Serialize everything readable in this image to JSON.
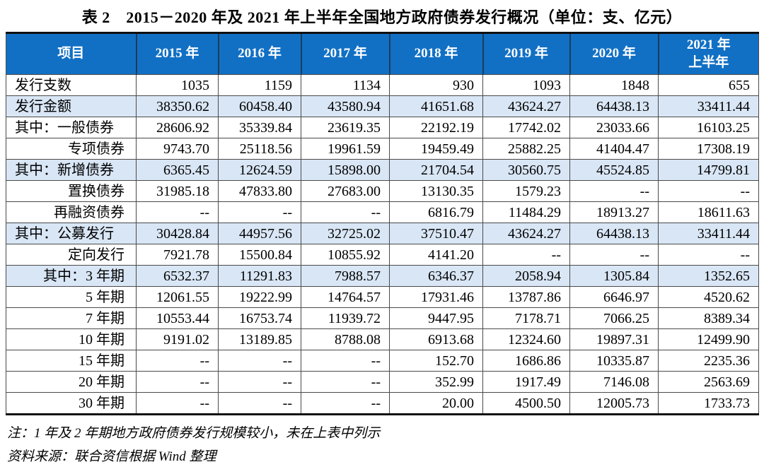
{
  "title": "表 2　2015－2020 年及 2021 年上半年全国地方政府债券发行概况（单位：支、亿元）",
  "table": {
    "columns": [
      "项目",
      "2015 年",
      "2016 年",
      "2017 年",
      "2018 年",
      "2019 年",
      "2020 年",
      "2021 年\n上半年"
    ],
    "rows": [
      {
        "label": "发行支数",
        "align": "left",
        "highlight": false,
        "values": [
          "1035",
          "1159",
          "1134",
          "930",
          "1093",
          "1848",
          "655"
        ]
      },
      {
        "label": "发行金额",
        "align": "left",
        "highlight": true,
        "values": [
          "38350.62",
          "60458.40",
          "43580.94",
          "41651.68",
          "43624.27",
          "64438.13",
          "33411.44"
        ]
      },
      {
        "label": "其中：一般债券",
        "align": "left",
        "highlight": false,
        "values": [
          "28606.92",
          "35339.84",
          "23619.35",
          "22192.19",
          "17742.02",
          "23033.66",
          "16103.25"
        ]
      },
      {
        "label": "专项债券",
        "align": "right",
        "highlight": false,
        "values": [
          "9743.70",
          "25118.56",
          "19961.59",
          "19459.49",
          "25882.25",
          "41404.47",
          "17308.19"
        ]
      },
      {
        "label": "其中：新增债券",
        "align": "left",
        "highlight": true,
        "values": [
          "6365.45",
          "12624.59",
          "15898.00",
          "21704.54",
          "30560.75",
          "45524.85",
          "14799.81"
        ]
      },
      {
        "label": "置换债券",
        "align": "right",
        "highlight": false,
        "values": [
          "31985.18",
          "47833.80",
          "27683.00",
          "13130.35",
          "1579.23",
          "--",
          "--"
        ]
      },
      {
        "label": "再融资债券",
        "align": "right",
        "highlight": false,
        "values": [
          "--",
          "--",
          "--",
          "6816.79",
          "11484.29",
          "18913.27",
          "18611.63"
        ]
      },
      {
        "label": "其中：公募发行",
        "align": "left",
        "highlight": true,
        "values": [
          "30428.84",
          "44957.56",
          "32725.02",
          "37510.47",
          "43624.27",
          "64438.13",
          "33411.44"
        ]
      },
      {
        "label": "定向发行",
        "align": "right",
        "highlight": false,
        "values": [
          "7921.78",
          "15500.84",
          "10855.92",
          "4141.20",
          "--",
          "--",
          "--"
        ]
      },
      {
        "label": "其中：3 年期",
        "align": "right",
        "highlight": true,
        "values": [
          "6532.37",
          "11291.83",
          "7988.57",
          "6346.37",
          "2058.94",
          "1305.84",
          "1352.65"
        ]
      },
      {
        "label": "5 年期",
        "align": "right",
        "highlight": false,
        "values": [
          "12061.55",
          "19222.99",
          "14764.57",
          "17931.46",
          "13787.86",
          "6646.97",
          "4520.62"
        ]
      },
      {
        "label": "7 年期",
        "align": "right",
        "highlight": false,
        "values": [
          "10553.44",
          "16753.74",
          "11939.72",
          "9447.95",
          "7178.71",
          "7066.25",
          "8389.34"
        ]
      },
      {
        "label": "10 年期",
        "align": "right",
        "highlight": false,
        "values": [
          "9191.02",
          "13189.85",
          "8788.08",
          "6913.68",
          "12324.60",
          "19897.31",
          "12499.90"
        ]
      },
      {
        "label": "15 年期",
        "align": "right",
        "highlight": false,
        "values": [
          "--",
          "--",
          "--",
          "152.70",
          "1686.86",
          "10335.87",
          "2235.36"
        ]
      },
      {
        "label": "20 年期",
        "align": "right",
        "highlight": false,
        "values": [
          "--",
          "--",
          "--",
          "352.99",
          "1917.49",
          "7146.08",
          "2563.69"
        ]
      },
      {
        "label": "30 年期",
        "align": "right",
        "highlight": false,
        "values": [
          "--",
          "--",
          "--",
          "20.00",
          "4500.50",
          "12005.73",
          "1733.73"
        ]
      }
    ]
  },
  "notes": {
    "note1": "注：1 年及 2 年期地方政府债券发行规模较小，未在上表中列示",
    "note2": "资料来源：联合资信根据 Wind 整理"
  },
  "colors": {
    "header_bg": "#1170C4",
    "highlight_row_bg": "#D9E6F5",
    "border": "#4a4a4a"
  }
}
